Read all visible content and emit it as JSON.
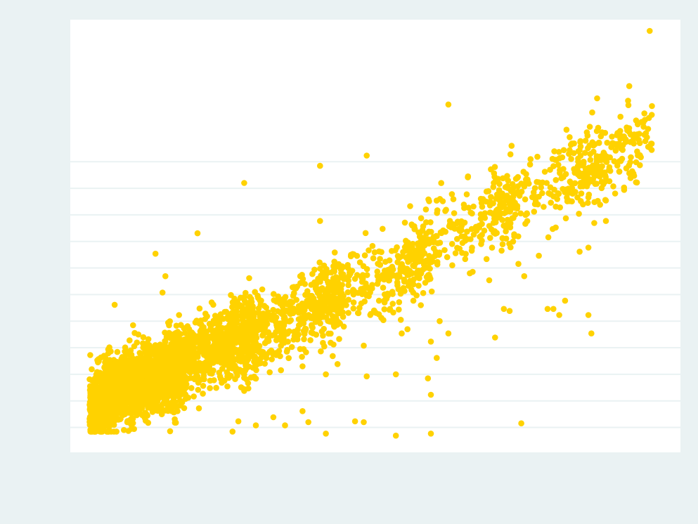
{
  "chart_data": {
    "type": "scatter",
    "title": "",
    "xlabel": "",
    "ylabel": "",
    "xlim": [
      0,
      100
    ],
    "ylim": [
      0,
      100
    ],
    "grid": "horizontal",
    "gridlines_y": [
      3,
      9.5,
      16,
      22.5,
      29,
      35.5,
      42,
      48.5,
      55,
      61.5,
      68
    ],
    "legend": "none",
    "colors": {
      "page_background": "#eaf2f3",
      "plot_background": "#ffffff",
      "gridline": "#eaf2f3",
      "marker": "#ffd200"
    },
    "seed": 20240,
    "series": [
      {
        "clusters": [
          {
            "xmin": 1.5,
            "xmax": 18,
            "yc": 13.5,
            "sd": 4.2,
            "ymin": 2,
            "ymax": 28,
            "n": 1700
          },
          {
            "xmin": 14,
            "xmax": 30,
            "yc": 22,
            "sd": 4.5,
            "ymin": 3,
            "ymax": 42,
            "n": 700
          },
          {
            "xmin": 25,
            "xmax": 45,
            "yc": 29,
            "sd": 4.8,
            "ymin": 3,
            "ymax": 48,
            "n": 480
          },
          {
            "xmin": 40,
            "xmax": 60,
            "yc": 39,
            "sd": 5,
            "n": 300
          },
          {
            "xmin": 55,
            "xmax": 75,
            "yc": 51,
            "sd": 5.5,
            "n": 230
          },
          {
            "xmin": 70,
            "xmax": 90,
            "yc": 62,
            "sd": 5,
            "n": 200
          },
          {
            "xmin": 85,
            "xmax": 98,
            "yc": 70,
            "sd": 4.5,
            "n": 170
          }
        ],
        "points": [
          {
            "x": 97.5,
            "y": 100
          },
          {
            "x": 63,
            "y": 82
          },
          {
            "x": 94,
            "y": 86.5
          },
          {
            "x": 88.5,
            "y": 83.5
          },
          {
            "x": 28,
            "y": 62.8
          },
          {
            "x": 20,
            "y": 50.5
          },
          {
            "x": 41,
            "y": 67
          },
          {
            "x": 49,
            "y": 69.5
          },
          {
            "x": 41,
            "y": 53.5
          },
          {
            "x": 12.8,
            "y": 45.5
          },
          {
            "x": 14.5,
            "y": 40
          },
          {
            "x": 5.8,
            "y": 33
          },
          {
            "x": 11.5,
            "y": 18
          },
          {
            "x": 14,
            "y": 36
          },
          {
            "x": 42,
            "y": 16
          },
          {
            "x": 44,
            "y": 18.5
          },
          {
            "x": 47.5,
            "y": 31
          },
          {
            "x": 48.5,
            "y": 23
          },
          {
            "x": 52,
            "y": 34
          },
          {
            "x": 53,
            "y": 32
          },
          {
            "x": 57,
            "y": 38
          },
          {
            "x": 58,
            "y": 39.5
          },
          {
            "x": 55,
            "y": 26
          },
          {
            "x": 57,
            "y": 34
          },
          {
            "x": 60,
            "y": 24
          },
          {
            "x": 61,
            "y": 20
          },
          {
            "x": 61.5,
            "y": 29
          },
          {
            "x": 63,
            "y": 26
          },
          {
            "x": 59.5,
            "y": 15
          },
          {
            "x": 70,
            "y": 39
          },
          {
            "x": 71,
            "y": 25
          },
          {
            "x": 72.5,
            "y": 32
          },
          {
            "x": 73.5,
            "y": 31.5
          },
          {
            "x": 75,
            "y": 43
          },
          {
            "x": 76,
            "y": 40
          },
          {
            "x": 78.5,
            "y": 45
          },
          {
            "x": 80,
            "y": 32
          },
          {
            "x": 81,
            "y": 32
          },
          {
            "x": 82,
            "y": 30.5
          },
          {
            "x": 83,
            "y": 34
          },
          {
            "x": 85.5,
            "y": 46
          },
          {
            "x": 87,
            "y": 30.5
          },
          {
            "x": 87.5,
            "y": 26
          },
          {
            "x": 90,
            "y": 53.5
          },
          {
            "x": 75.5,
            "y": 4
          },
          {
            "x": 54,
            "y": 1
          },
          {
            "x": 60,
            "y": 1.5
          },
          {
            "x": 42,
            "y": 1.5
          },
          {
            "x": 47,
            "y": 4.5
          },
          {
            "x": 48.5,
            "y": 4.3
          },
          {
            "x": 38,
            "y": 7
          },
          {
            "x": 39,
            "y": 4.3
          },
          {
            "x": 33,
            "y": 5.5
          },
          {
            "x": 35,
            "y": 3.5
          },
          {
            "x": 30,
            "y": 3.5
          },
          {
            "x": 27,
            "y": 4.5
          },
          {
            "x": 26,
            "y": 2
          },
          {
            "x": 60,
            "y": 11
          },
          {
            "x": 54,
            "y": 16
          },
          {
            "x": 49,
            "y": 15.5
          },
          {
            "x": 90,
            "y": 58.5
          },
          {
            "x": 89,
            "y": 57.5
          },
          {
            "x": 88,
            "y": 53
          },
          {
            "x": 87,
            "y": 47
          }
        ]
      }
    ]
  }
}
